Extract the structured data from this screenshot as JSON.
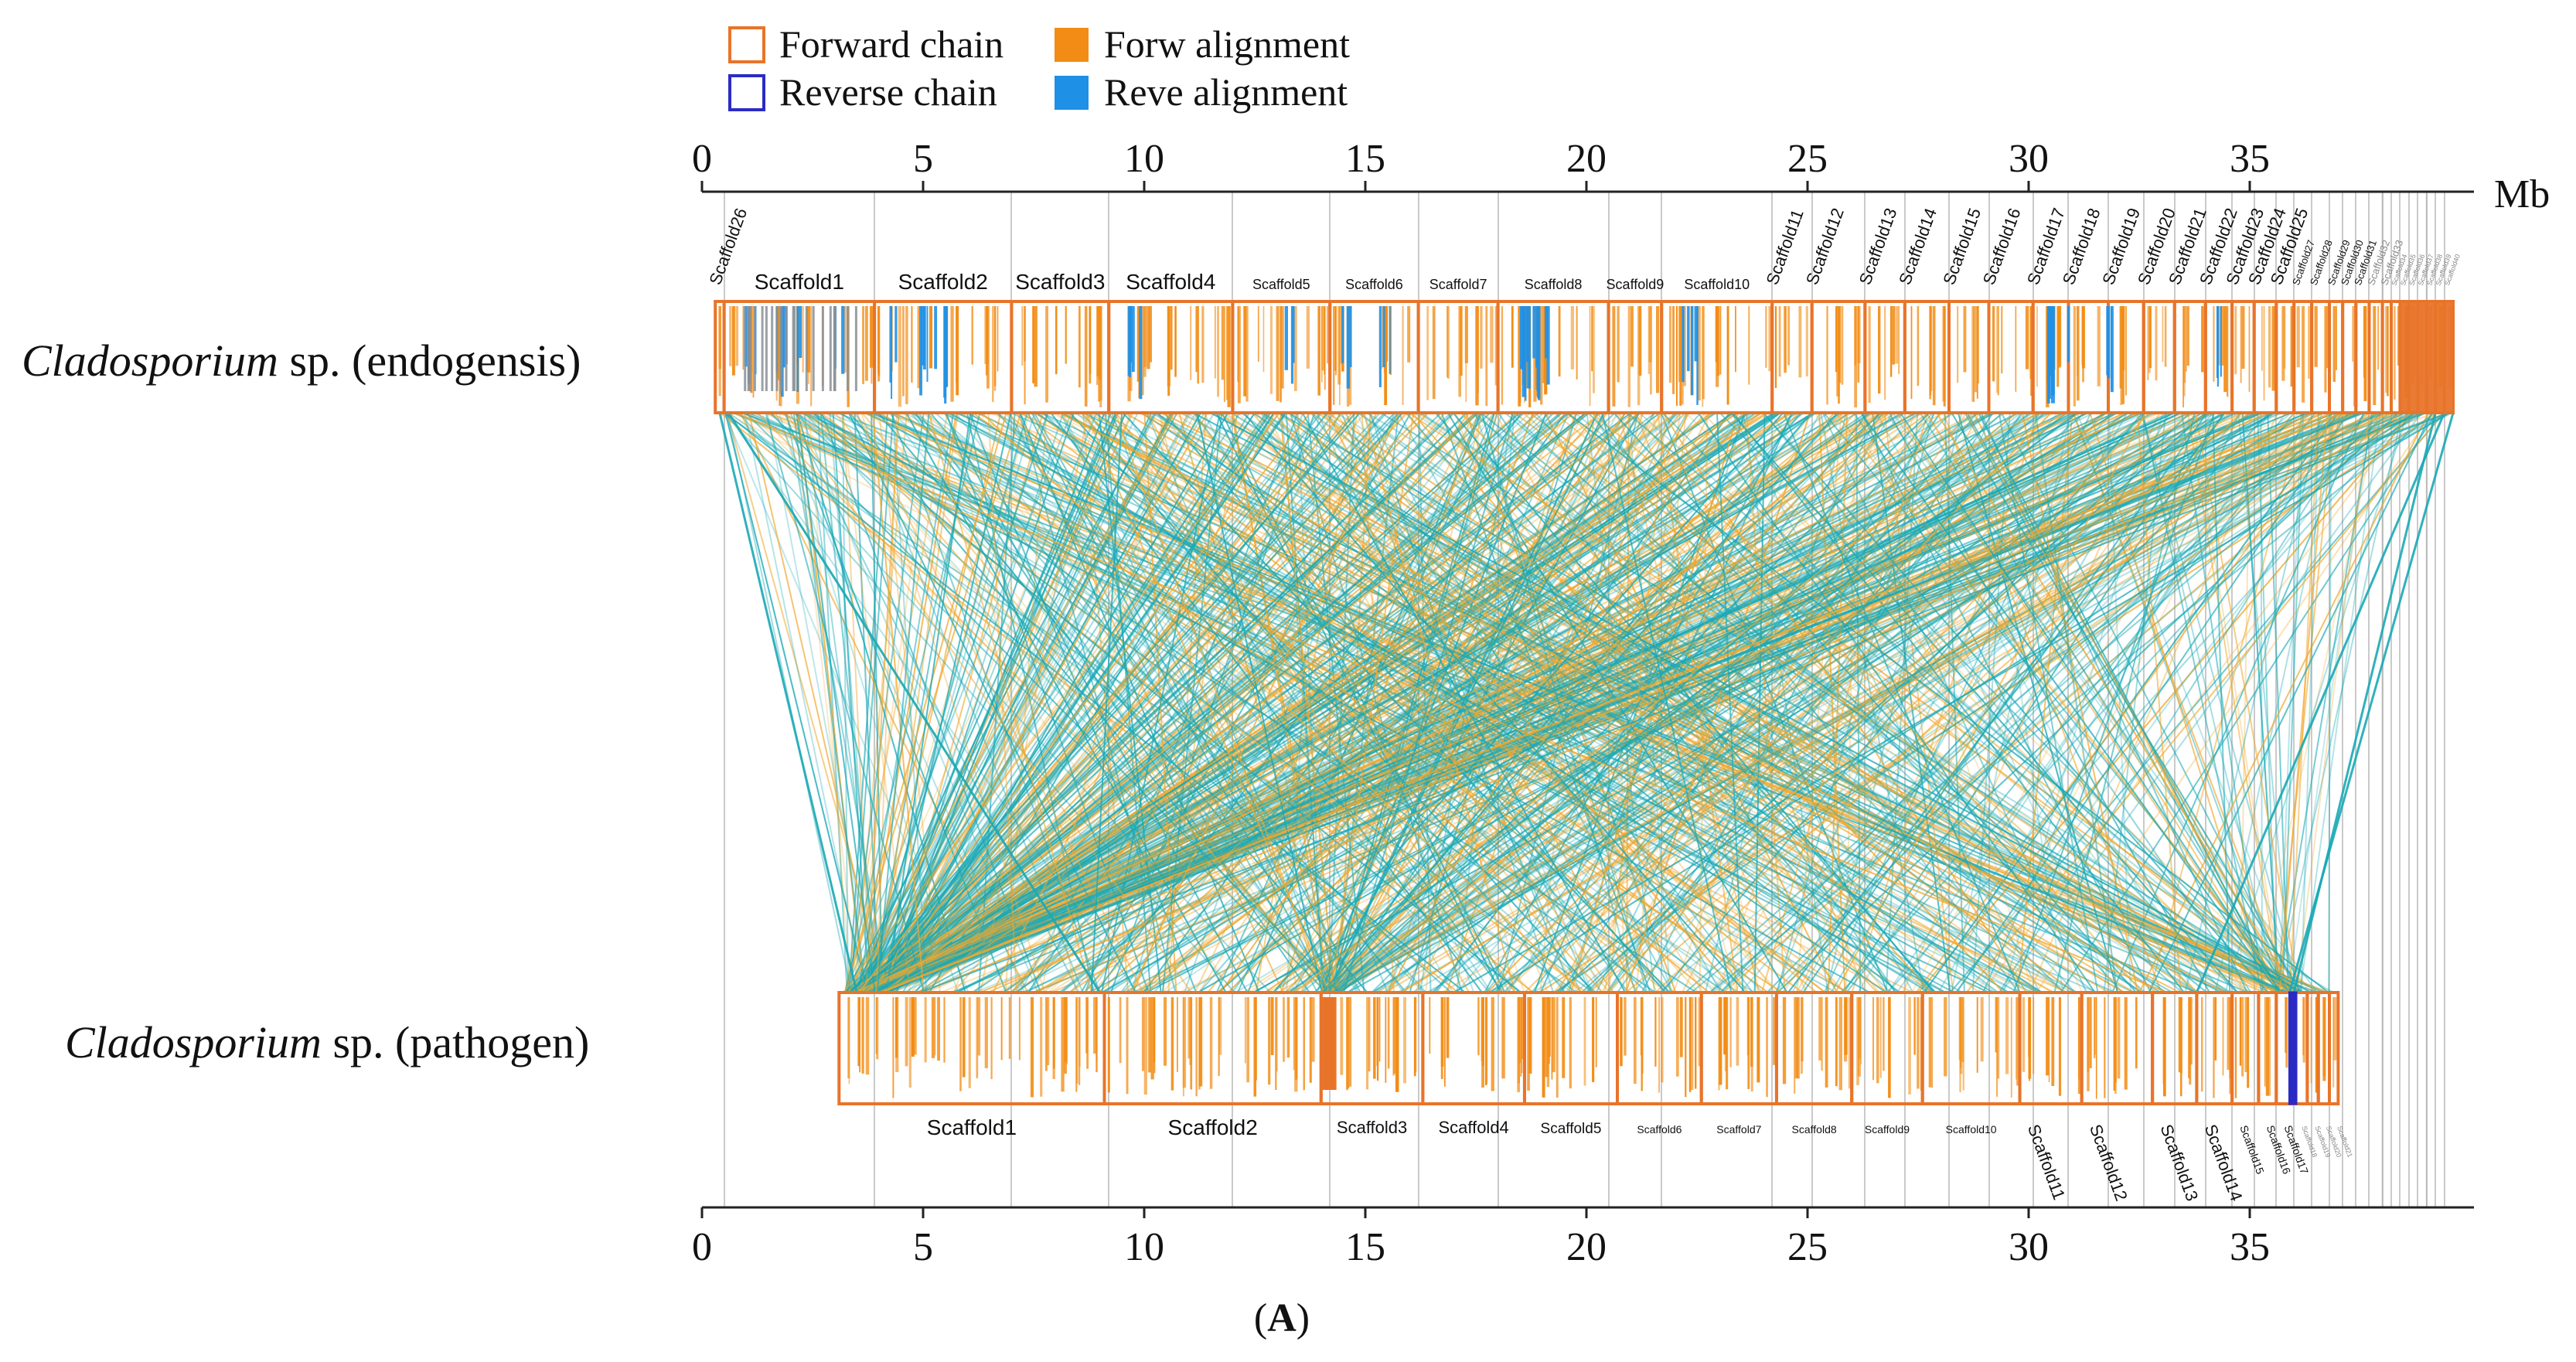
{
  "legend": {
    "items": [
      {
        "label": "Forward chain",
        "style": "outline",
        "color": "#E8742A"
      },
      {
        "label": "Reverse chain",
        "style": "outline",
        "color": "#2B2BC4"
      },
      {
        "label": "Forw alignment",
        "style": "filled",
        "color": "#F28C14"
      },
      {
        "label": "Reve alignment",
        "style": "filled",
        "color": "#1E90E6"
      }
    ]
  },
  "axis": {
    "unit": "Mb",
    "ticks": [
      0,
      5,
      10,
      15,
      20,
      25,
      30,
      35
    ],
    "range": [
      0,
      40
    ]
  },
  "genomes": {
    "top": {
      "name_italic": "Cladosporium",
      "name_rest": " sp. (endogensis)"
    },
    "bottom": {
      "name_italic": "Cladosporium",
      "name_rest": " sp. (pathogen)"
    }
  },
  "caption": {
    "open": "(",
    "letter": "A",
    "close": ")"
  },
  "colors": {
    "chain": "#E8742A",
    "reverse": "#2B2BC4",
    "forw_alignment": "#F28C14",
    "reve_alignment": "#1E90E6",
    "link_teal": "#1AA9B5",
    "link_orange": "#F0A830",
    "grid": "#b4b4b4",
    "axis": "#222222"
  },
  "chart_data": {
    "type": "synteny",
    "unit": "Mb",
    "xlim": [
      0,
      40
    ],
    "top_scaffolds": [
      {
        "name": "Scaffold26",
        "start": 0.3,
        "end": 0.5
      },
      {
        "name": "Scaffold1",
        "start": 0.5,
        "end": 3.9
      },
      {
        "name": "Scaffold2",
        "start": 3.9,
        "end": 7.0
      },
      {
        "name": "Scaffold3",
        "start": 7.0,
        "end": 9.2
      },
      {
        "name": "Scaffold4",
        "start": 9.2,
        "end": 12.0
      },
      {
        "name": "Scaffold5",
        "start": 12.0,
        "end": 14.2
      },
      {
        "name": "Scaffold6",
        "start": 14.2,
        "end": 16.2
      },
      {
        "name": "Scaffold7",
        "start": 16.2,
        "end": 18.0
      },
      {
        "name": "Scaffold8",
        "start": 18.0,
        "end": 20.5
      },
      {
        "name": "Scaffold9",
        "start": 20.5,
        "end": 21.7
      },
      {
        "name": "Scaffold10",
        "start": 21.7,
        "end": 24.2
      },
      {
        "name": "Scaffold11",
        "start": 24.2,
        "end": 25.1
      },
      {
        "name": "Scaffold12",
        "start": 25.1,
        "end": 26.3
      },
      {
        "name": "Scaffold13",
        "start": 26.3,
        "end": 27.2
      },
      {
        "name": "Scaffold14",
        "start": 27.2,
        "end": 28.2
      },
      {
        "name": "Scaffold15",
        "start": 28.2,
        "end": 29.1
      },
      {
        "name": "Scaffold16",
        "start": 29.1,
        "end": 30.1
      },
      {
        "name": "Scaffold17",
        "start": 30.1,
        "end": 30.9
      },
      {
        "name": "Scaffold18",
        "start": 30.9,
        "end": 31.8
      },
      {
        "name": "Scaffold19",
        "start": 31.8,
        "end": 32.6
      },
      {
        "name": "Scaffold20",
        "start": 32.6,
        "end": 33.3
      },
      {
        "name": "Scaffold21",
        "start": 33.3,
        "end": 34.0
      },
      {
        "name": "Scaffold22",
        "start": 34.0,
        "end": 34.6
      },
      {
        "name": "Scaffold23",
        "start": 34.6,
        "end": 35.1
      },
      {
        "name": "Scaffold24",
        "start": 35.1,
        "end": 35.6
      },
      {
        "name": "Scaffold25",
        "start": 35.6,
        "end": 36.0
      },
      {
        "name": "Scaffold27",
        "start": 36.0,
        "end": 36.4
      },
      {
        "name": "Scaffold28",
        "start": 36.4,
        "end": 36.8
      },
      {
        "name": "Scaffold29",
        "start": 36.8,
        "end": 37.1
      },
      {
        "name": "Scaffold30",
        "start": 37.1,
        "end": 37.4
      },
      {
        "name": "Scaffold31",
        "start": 37.4,
        "end": 37.7
      },
      {
        "name": "Scaffold32",
        "start": 37.7,
        "end": 38.0
      },
      {
        "name": "Scaffold33",
        "start": 38.0,
        "end": 38.2
      },
      {
        "name": "Scaffold34",
        "start": 38.2,
        "end": 38.4
      },
      {
        "name": "Scaffold35",
        "start": 38.4,
        "end": 38.6
      },
      {
        "name": "Scaffold36",
        "start": 38.6,
        "end": 38.8
      },
      {
        "name": "Scaffold37",
        "start": 38.8,
        "end": 39.0
      },
      {
        "name": "Scaffold38",
        "start": 39.0,
        "end": 39.2
      },
      {
        "name": "Scaffold39",
        "start": 39.2,
        "end": 39.4
      },
      {
        "name": "Scaffold40",
        "start": 39.4,
        "end": 39.6
      }
    ],
    "bottom_scaffolds": [
      {
        "name": "Scaffold1",
        "start": 3.1,
        "end": 9.1
      },
      {
        "name": "Scaffold2",
        "start": 9.1,
        "end": 14.0
      },
      {
        "name": "Scaffold3",
        "start": 14.0,
        "end": 16.3
      },
      {
        "name": "Scaffold4",
        "start": 16.3,
        "end": 18.6
      },
      {
        "name": "Scaffold5",
        "start": 18.6,
        "end": 20.7
      },
      {
        "name": "Scaffold6",
        "start": 20.7,
        "end": 22.6
      },
      {
        "name": "Scaffold7",
        "start": 22.6,
        "end": 24.3
      },
      {
        "name": "Scaffold8",
        "start": 24.3,
        "end": 26.0
      },
      {
        "name": "Scaffold9",
        "start": 26.0,
        "end": 27.6
      },
      {
        "name": "Scaffold10",
        "start": 27.6,
        "end": 29.8
      },
      {
        "name": "Scaffold11",
        "start": 29.8,
        "end": 31.2
      },
      {
        "name": "Scaffold12",
        "start": 31.2,
        "end": 32.8
      },
      {
        "name": "Scaffold13",
        "start": 32.8,
        "end": 33.8
      },
      {
        "name": "Scaffold14",
        "start": 33.8,
        "end": 34.6
      },
      {
        "name": "Scaffold15",
        "start": 34.6,
        "end": 35.2
      },
      {
        "name": "Scaffold16",
        "start": 35.2,
        "end": 35.6
      },
      {
        "name": "Scaffold17",
        "start": 35.6,
        "end": 36.0
      },
      {
        "name": "Scaffold18",
        "start": 36.0,
        "end": 36.3
      },
      {
        "name": "Scaffold19",
        "start": 36.3,
        "end": 36.55
      },
      {
        "name": "Scaffold20",
        "start": 36.55,
        "end": 36.8
      },
      {
        "name": "Scaffold21",
        "start": 36.8,
        "end": 37.0
      }
    ],
    "reverse_region_bottom": [
      35.9,
      36.05
    ],
    "reverse_alignments_top": [
      [
        0.9,
        1.3
      ],
      [
        1.6,
        2.2
      ],
      [
        2.9,
        3.2
      ],
      [
        4.2,
        4.4
      ],
      [
        4.9,
        5.6
      ],
      [
        9.6,
        10.0
      ],
      [
        13.1,
        13.4
      ],
      [
        14.4,
        14.7
      ],
      [
        15.3,
        15.6
      ],
      [
        18.2,
        19.3
      ],
      [
        22.1,
        22.5
      ],
      [
        30.4,
        30.9
      ],
      [
        31.7,
        31.9
      ],
      [
        34.2,
        34.4
      ]
    ]
  }
}
